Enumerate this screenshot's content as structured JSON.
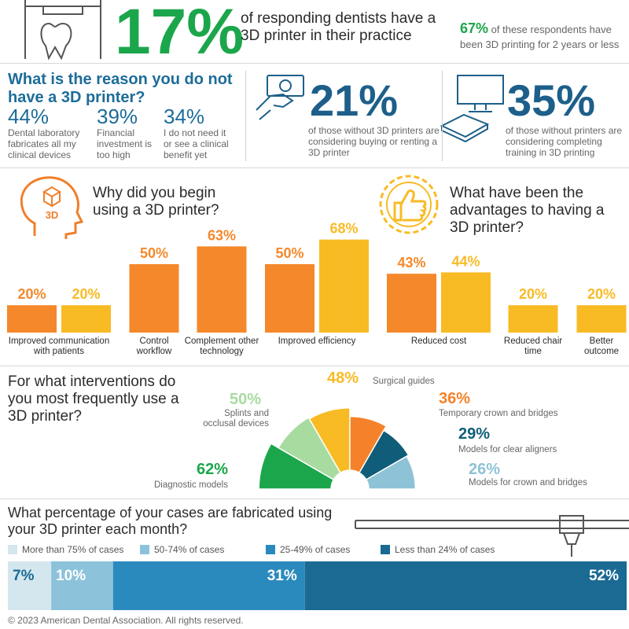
{
  "header": {
    "stat": "17%",
    "stat_text": "of responding dentists have a 3D printer in their practice",
    "side_stat": "67%",
    "side_text": "of these respondents have been 3D printing for 2 years or less"
  },
  "no_printer": {
    "title": "What is the reason you do not have a 3D printer?",
    "reasons": [
      {
        "stat": "44%",
        "text": "Dental laboratory fabricates all my clinical devices"
      },
      {
        "stat": "39%",
        "text": "Financial investment is too high"
      },
      {
        "stat": "34%",
        "text": "I do not need it or see a clinical benefit yet"
      }
    ],
    "considering": [
      {
        "stat": "21%",
        "text": "of those without 3D printers are considering buying or renting a 3D printer"
      },
      {
        "stat": "35%",
        "text": "of those without printers are considering completing training in 3D printing"
      }
    ]
  },
  "icon_label": "3D",
  "chart_data": [
    {
      "type": "bar",
      "categories": [
        "Improved communication with patients",
        "Control workflow",
        "Complement other technology",
        "Improved efficiency",
        "Reduced cost",
        "Reduced chair time",
        "Better outcome"
      ],
      "series": [
        {
          "name": "Why did you begin using a 3D printer?",
          "color": "#f5882a",
          "values": [
            20,
            50,
            63,
            50,
            43,
            null,
            null
          ],
          "value_labels": [
            "20%",
            "50%",
            "63%",
            "50%",
            "43%",
            null,
            null
          ]
        },
        {
          "name": "What have been the advantages to having a 3D printer?",
          "color": "#f8bb24",
          "values": [
            20,
            null,
            null,
            68,
            44,
            20,
            20
          ],
          "value_labels": [
            "20%",
            null,
            null,
            "68%",
            "44%",
            "20%",
            "20%"
          ]
        }
      ]
    },
    {
      "type": "rose",
      "title": "For what interventions do you most frequently use a 3D printer?",
      "categories": [
        "Diagnostic models",
        "Splints and occlusal devices",
        "Surgical guides",
        "Temporary crown and bridges",
        "Models for clear aligners",
        "Models for crown and bridges"
      ],
      "values": [
        62,
        50,
        48,
        36,
        29,
        26
      ],
      "value_labels": [
        "62%",
        "50%",
        "48%",
        "36%",
        "29%",
        "26%"
      ],
      "colors": [
        "#1ca64b",
        "#a8dba0",
        "#f8bb24",
        "#f5822a",
        "#0f5d78",
        "#8ec2d6"
      ]
    },
    {
      "type": "stacked_bar",
      "title": "What percentage of your cases are fabricated using your 3D printer each month?",
      "series": [
        {
          "name": "More than 75% of cases",
          "color": "#d4e7ef",
          "values": [
            7
          ],
          "value_labels": [
            "7%"
          ]
        },
        {
          "name": "50-74% of cases",
          "color": "#8cc3da",
          "values": [
            10
          ],
          "value_labels": [
            "10%"
          ]
        },
        {
          "name": "25-49% of cases",
          "color": "#2b8abd",
          "values": [
            31
          ],
          "value_labels": [
            "31%"
          ]
        },
        {
          "name": "Less than 24% of cases",
          "color": "#1a6a94",
          "values": [
            52
          ],
          "value_labels": [
            "52%"
          ]
        }
      ]
    }
  ],
  "footer": "© 2023 American Dental Association. All rights reserved."
}
